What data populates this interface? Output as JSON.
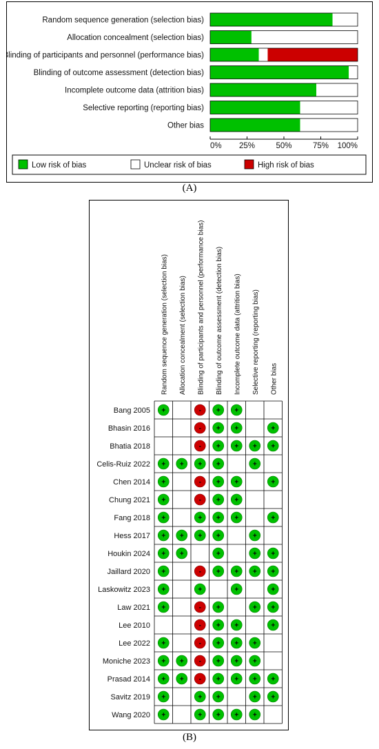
{
  "chart_data": [
    {
      "type": "bar",
      "orientation": "horizontal",
      "stacked": true,
      "categories": [
        "Random sequence generation (selection bias)",
        "Allocation concealment (selection bias)",
        "Blinding of participants and personnel (performance bias)",
        "Blinding of outcome assessment (detection bias)",
        "Incomplete outcome data (attrition bias)",
        "Selective reporting (reporting bias)",
        "Other bias"
      ],
      "series": [
        {
          "name": "Low risk of bias",
          "color": "#00c000",
          "values": [
            83,
            28,
            33,
            94,
            72,
            61,
            61
          ]
        },
        {
          "name": "Unclear risk of bias",
          "color": "#ffffff",
          "values": [
            17,
            72,
            6,
            6,
            28,
            39,
            39
          ]
        },
        {
          "name": "High risk of bias",
          "color": "#cc0000",
          "values": [
            0,
            0,
            61,
            0,
            0,
            0,
            0
          ]
        }
      ],
      "xticks": [
        "0%",
        "25%",
        "50%",
        "75%",
        "100%"
      ],
      "xlim": [
        0,
        100
      ],
      "legend_position": "bottom",
      "panel_label": "(A)"
    },
    {
      "type": "table",
      "columns": [
        "Random sequence generation (selection bias)",
        "Allocation concealment (selection bias)",
        "Blinding of participants and personnel (performance bias)",
        "Blinding of outcome assessment (detection bias)",
        "Incomplete outcome data (attrition bias)",
        "Selective reporting (reporting bias)",
        "Other bias"
      ],
      "rows": [
        {
          "study": "Bang 2005",
          "judgements": [
            "+",
            "",
            "-",
            "+",
            "+",
            "",
            ""
          ]
        },
        {
          "study": "Bhasin 2016",
          "judgements": [
            "",
            "",
            "-",
            "+",
            "+",
            "",
            "+"
          ]
        },
        {
          "study": "Bhatia 2018",
          "judgements": [
            "",
            "",
            "-",
            "+",
            "+",
            "+",
            "+"
          ]
        },
        {
          "study": "Celis-Ruiz 2022",
          "judgements": [
            "+",
            "+",
            "+",
            "+",
            "",
            "+",
            ""
          ]
        },
        {
          "study": "Chen 2014",
          "judgements": [
            "+",
            "",
            "-",
            "+",
            "+",
            "",
            "+"
          ]
        },
        {
          "study": "Chung 2021",
          "judgements": [
            "+",
            "",
            "-",
            "+",
            "+",
            "",
            ""
          ]
        },
        {
          "study": "Fang 2018",
          "judgements": [
            "+",
            "",
            "+",
            "+",
            "+",
            "",
            "+"
          ]
        },
        {
          "study": "Hess 2017",
          "judgements": [
            "+",
            "+",
            "+",
            "+",
            "",
            "+",
            ""
          ]
        },
        {
          "study": "Houkin 2024",
          "judgements": [
            "+",
            "+",
            "",
            "+",
            "",
            "+",
            "+"
          ]
        },
        {
          "study": "Jaillard 2020",
          "judgements": [
            "+",
            "",
            "-",
            "+",
            "+",
            "+",
            "+"
          ]
        },
        {
          "study": "Laskowitz 2023",
          "judgements": [
            "+",
            "",
            "+",
            "",
            "+",
            "",
            "+"
          ]
        },
        {
          "study": "Law 2021",
          "judgements": [
            "+",
            "",
            "-",
            "+",
            "",
            "+",
            "+"
          ]
        },
        {
          "study": "Lee 2010",
          "judgements": [
            "",
            "",
            "-",
            "+",
            "+",
            "",
            "+"
          ]
        },
        {
          "study": "Lee 2022",
          "judgements": [
            "+",
            "",
            "-",
            "+",
            "+",
            "+",
            ""
          ]
        },
        {
          "study": "Moniche 2023",
          "judgements": [
            "+",
            "+",
            "-",
            "+",
            "+",
            "+",
            ""
          ]
        },
        {
          "study": "Prasad 2014",
          "judgements": [
            "+",
            "+",
            "-",
            "+",
            "+",
            "+",
            "+"
          ]
        },
        {
          "study": "Savitz 2019",
          "judgements": [
            "+",
            "",
            "+",
            "+",
            "",
            "+",
            "+"
          ]
        },
        {
          "study": "Wang 2020",
          "judgements": [
            "+",
            "",
            "+",
            "+",
            "+",
            "+",
            ""
          ]
        }
      ],
      "legend": {
        "+": "#00c000",
        "-": "#cc0000"
      },
      "panel_label": "(B)"
    }
  ]
}
